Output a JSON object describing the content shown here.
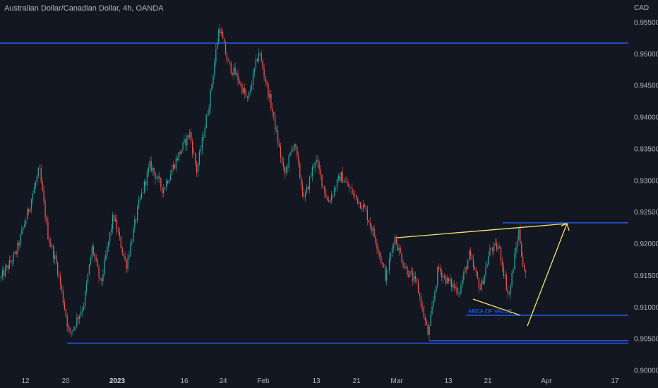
{
  "header": {
    "title": "Australian Dollar/Canadian Dollar, 4h, OANDA",
    "currency": "CAD"
  },
  "colors": {
    "background": "#131722",
    "bullish": "#26a69a",
    "bearish": "#ef5350",
    "level_line": "#2962ff",
    "trend_line": "#f5e66b",
    "axis_text": "#b2b5be"
  },
  "chart_data": {
    "type": "candlestick",
    "symbol": "AUDCAD",
    "timeframe": "4h",
    "ylim": [
      0.9,
      0.9575
    ],
    "y_ticks": [
      "0.95500",
      "0.95000",
      "0.94500",
      "0.94000",
      "0.93500",
      "0.93000",
      "0.92500",
      "0.92000",
      "0.91500",
      "0.91000",
      "0.90500",
      "0.90000"
    ],
    "x_ticks": [
      {
        "label": "12",
        "bold": false
      },
      {
        "label": "20",
        "bold": false
      },
      {
        "label": "2023",
        "bold": true
      },
      {
        "label": "16",
        "bold": false
      },
      {
        "label": "24",
        "bold": false
      },
      {
        "label": "Feb",
        "bold": false
      },
      {
        "label": "13",
        "bold": false
      },
      {
        "label": "21",
        "bold": false
      },
      {
        "label": "Mar",
        "bold": false
      },
      {
        "label": "13",
        "bold": false
      },
      {
        "label": "21",
        "bold": false
      },
      {
        "label": "Apr",
        "bold": false
      },
      {
        "label": "17",
        "bold": false
      }
    ],
    "price_path": [
      0.9145,
      0.9185,
      0.9255,
      0.9318,
      0.9215,
      0.9165,
      0.9055,
      0.9105,
      0.9195,
      0.9135,
      0.9245,
      0.9165,
      0.9262,
      0.9325,
      0.9285,
      0.9335,
      0.9375,
      0.9315,
      0.9425,
      0.9545,
      0.9485,
      0.9462,
      0.9425,
      0.9505,
      0.9415,
      0.9308,
      0.9362,
      0.9268,
      0.9335,
      0.9265,
      0.9308,
      0.9278,
      0.9255,
      0.9205,
      0.9145,
      0.9212,
      0.9165,
      0.9135,
      0.9055,
      0.9162,
      0.9142,
      0.9125,
      0.9182,
      0.9128,
      0.9192,
      0.9195,
      0.9115,
      0.9222,
      0.9152,
      0.9162,
      0.9115,
      0.9122
    ],
    "levels": [
      {
        "name": "resistance-high",
        "price": 0.9517
      },
      {
        "name": "resistance-area",
        "price": 0.9233
      },
      {
        "name": "area-of-value",
        "price": 0.9087
      },
      {
        "name": "support-low-a",
        "price": 0.9047
      },
      {
        "name": "support-low-b",
        "price": 0.9043
      }
    ],
    "annotations": [
      {
        "type": "text",
        "text": "AREA OF VALUE"
      },
      {
        "type": "trendline",
        "name": "upper-trendline"
      },
      {
        "type": "trendline",
        "name": "wedge-lower-leg"
      },
      {
        "type": "arrow",
        "name": "projection-arrow"
      }
    ]
  }
}
